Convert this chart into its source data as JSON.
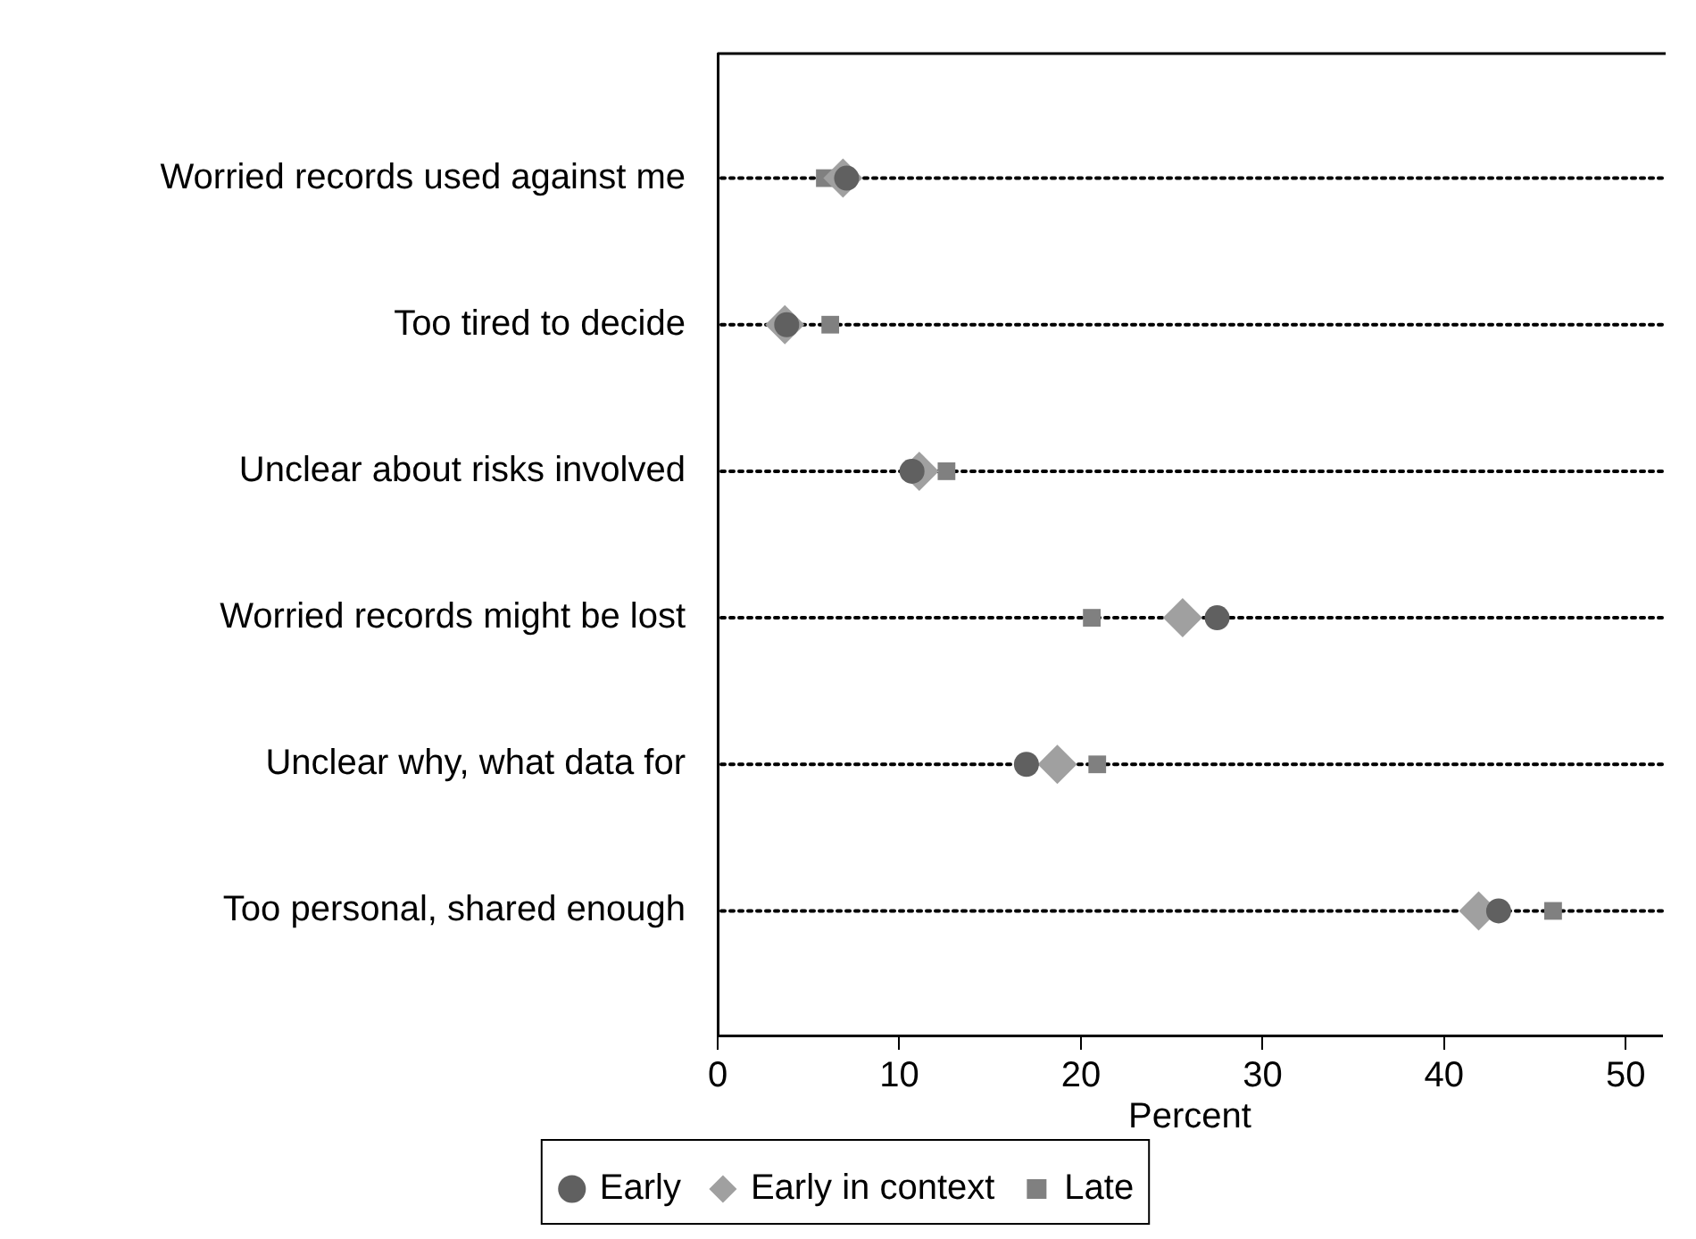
{
  "chart_data": {
    "type": "scatter",
    "orientation": "horizontal",
    "xlabel": "Percent",
    "categories": [
      "Worried records used against me",
      "Too tired to decide",
      "Unclear about risks involved",
      "Worried records might be lost",
      "Unclear why, what data for",
      "Too personal, shared enough"
    ],
    "series": [
      {
        "name": "Early",
        "color": "#606060",
        "marker": "circle",
        "values": [
          7.1,
          3.8,
          10.7,
          27.5,
          17.0,
          43.0
        ]
      },
      {
        "name": "Early in context",
        "color": "#a0a0a0",
        "marker": "diamond",
        "values": [
          6.9,
          3.7,
          11.1,
          25.6,
          18.7,
          41.9
        ]
      },
      {
        "name": "Late",
        "color": "#808080",
        "marker": "square",
        "values": [
          5.9,
          6.2,
          12.6,
          20.6,
          20.9,
          46.0
        ]
      }
    ],
    "xlim": [
      0,
      52
    ],
    "xticks": [
      0,
      10,
      20,
      30,
      40,
      50
    ],
    "grid": "y",
    "legend": "bottom",
    "line_style": "dotted"
  }
}
